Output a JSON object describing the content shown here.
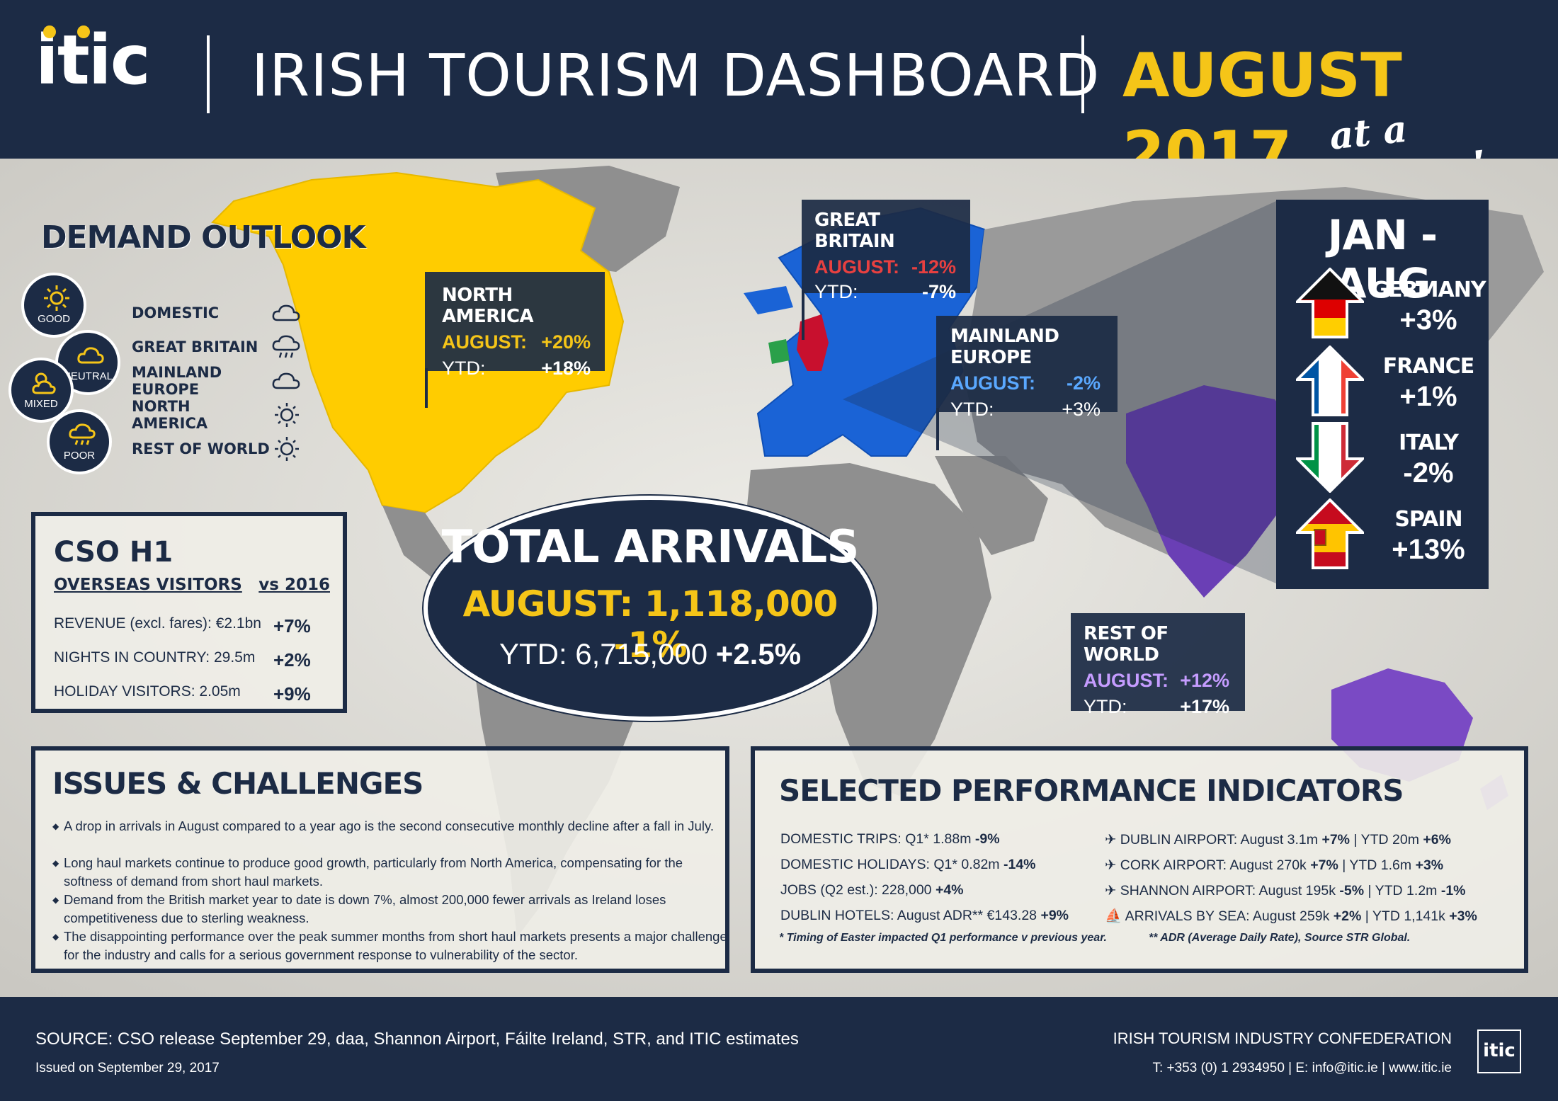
{
  "header": {
    "logo": "itic",
    "title": "IRISH TOURISM DASHBOARD",
    "month": "AUGUST 2017",
    "tagline": "at a glance!"
  },
  "demand_outlook": {
    "title": "DEMAND OUTLOOK",
    "legend": [
      {
        "label": "GOOD",
        "icon": "sun-icon"
      },
      {
        "label": "NEUTRAL",
        "icon": "cloud-icon"
      },
      {
        "label": "MIXED",
        "icon": "sun-cloud-icon"
      },
      {
        "label": "POOR",
        "icon": "rain-cloud-icon"
      }
    ],
    "markets": [
      {
        "label": "DOMESTIC",
        "icon": "cloud-icon"
      },
      {
        "label": "GREAT BRITAIN",
        "icon": "rain-cloud-icon"
      },
      {
        "label": "MAINLAND EUROPE",
        "icon": "cloud-icon"
      },
      {
        "label": "NORTH AMERICA",
        "icon": "sun-icon"
      },
      {
        "label": "REST OF WORLD",
        "icon": "sun-icon"
      }
    ]
  },
  "regions": {
    "north_america": {
      "title": "NORTH AMERICA",
      "august_label": "AUGUST:",
      "august": "+20%",
      "ytd_label": "YTD:",
      "ytd": "+18%"
    },
    "great_britain": {
      "title": "GREAT BRITAIN",
      "august_label": "AUGUST:",
      "august": "-12%",
      "ytd_label": "YTD:",
      "ytd": "-7%"
    },
    "mainland_europe": {
      "title": "MAINLAND EUROPE",
      "august_label": "AUGUST:",
      "august": "-2%",
      "ytd_label": "YTD:",
      "ytd": "+3%"
    },
    "rest_of_world": {
      "title": "REST OF WORLD",
      "august_label": "AUGUST:",
      "august": "+12%",
      "ytd_label": "YTD:",
      "ytd": "+17%"
    }
  },
  "cso": {
    "title": "CSO H1",
    "subtitle": "OVERSEAS VISITORS",
    "vs": "vs 2016",
    "rows": [
      {
        "label": "REVENUE (excl. fares): €2.1bn",
        "value": "+7%"
      },
      {
        "label": "NIGHTS IN COUNTRY: 29.5m",
        "value": "+2%"
      },
      {
        "label": "HOLIDAY VISITORS: 2.05m",
        "value": "+9%"
      }
    ]
  },
  "total_arrivals": {
    "title": "TOTAL ARRIVALS",
    "august": "AUGUST: 1,118,000 -1%",
    "ytd_label": "YTD: 6,715,000",
    "ytd_change": "+2.5%"
  },
  "jan_aug": {
    "title": "JAN - AUG",
    "countries": [
      {
        "name": "GERMANY",
        "value": "+3%",
        "direction": "up"
      },
      {
        "name": "FRANCE",
        "value": "+1%",
        "direction": "up"
      },
      {
        "name": "ITALY",
        "value": "-2%",
        "direction": "down"
      },
      {
        "name": "SPAIN",
        "value": "+13%",
        "direction": "up"
      }
    ]
  },
  "issues": {
    "title": "ISSUES & CHALLENGES",
    "items": [
      "A drop in arrivals in August compared to a year ago is the second consecutive monthly decline after a fall in July.",
      "Long haul markets continue to produce good growth, particularly from North America, compensating for the softness of demand from short haul markets.",
      "Demand from the British market year to date is down 7%, almost 200,000 fewer arrivals as Ireland loses competitiveness due to sterling weakness.",
      "The disappointing performance over the peak summer months from short haul markets presents a major challenge for the industry and calls for a serious government response to vulnerability of the sector."
    ]
  },
  "spi": {
    "title": "SELECTED PERFORMANCE INDICATORS",
    "left": [
      {
        "text": "DOMESTIC TRIPS: Q1* 1.88m",
        "value": "-9%"
      },
      {
        "text": "DOMESTIC HOLIDAYS: Q1* 0.82m",
        "value": "-14%"
      },
      {
        "text": "JOBS (Q2 est.): 228,000",
        "value": "+4%"
      },
      {
        "text": "DUBLIN HOTELS: August ADR** €143.28",
        "value": "+9%"
      }
    ],
    "right": [
      {
        "icon": "plane-icon",
        "label": "DUBLIN AIRPORT:",
        "month": "August 3.1m",
        "month_change": "+7%",
        "ytd": "YTD 20m",
        "ytd_change": "+6%"
      },
      {
        "icon": "plane-icon",
        "label": "CORK AIRPORT:",
        "month": "August 270k",
        "month_change": "+7%",
        "ytd": "YTD 1.6m",
        "ytd_change": "+3%"
      },
      {
        "icon": "plane-icon",
        "label": "SHANNON AIRPORT:",
        "month": "August 195k",
        "month_change": "-5%",
        "ytd": "YTD 1.2m",
        "ytd_change": "-1%"
      },
      {
        "icon": "ship-icon",
        "label": "ARRIVALS BY SEA:",
        "month": "August 259k",
        "month_change": "+2%",
        "ytd": "YTD 1,141k",
        "ytd_change": "+3%"
      }
    ],
    "note1": "* Timing of Easter impacted Q1 performance v previous year.",
    "note2": "** ADR (Average Daily Rate), Source STR Global."
  },
  "footer": {
    "source": "SOURCE: CSO release September 29, daa, Shannon Airport, Fáilte Ireland, STR, and ITIC estimates",
    "issued": "Issued on September 29, 2017",
    "org": "IRISH TOURISM INDUSTRY CONFEDERATION",
    "contact": "T: +353 (0) 1 2934950 | E: info@itic.ie | www.itic.ie",
    "logo": "itic"
  },
  "colors": {
    "navy": "#1c2b45",
    "yellow": "#f5c518",
    "north_america": "#ffcc00",
    "europe": "#1a63d6",
    "gb": "#c8102e",
    "ireland": "#2aa04a",
    "rest_of_world": "#6a3fb5"
  }
}
